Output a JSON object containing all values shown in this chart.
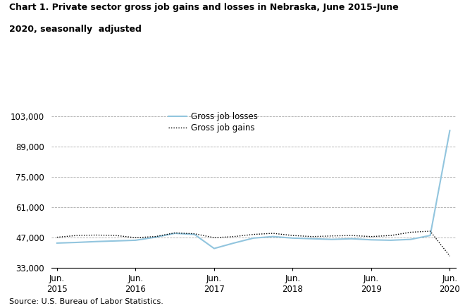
{
  "title_line1": "Chart 1. Private sector gross job gains and losses in Nebraska, June 2015–June",
  "title_line2": "2020, seasonally  adjusted",
  "source": "Source: U.S. Bureau of Labor Statistics.",
  "losses_label": "Gross job losses",
  "gains_label": "Gross job gains",
  "losses_color": "#92C5DE",
  "gains_color": "#000000",
  "ylim": [
    33000,
    107000
  ],
  "yticks": [
    33000,
    47000,
    61000,
    75000,
    89000,
    103000
  ],
  "ytick_labels": [
    "33,000",
    "47,000",
    "61,000",
    "75,000",
    "89,000",
    "103,000"
  ],
  "x_tick_labels": [
    "Jun.\n2015",
    "Jun.\n2016",
    "Jun.\n2017",
    "Jun.\n2018",
    "Jun.\n2019",
    "Jun.\n2020"
  ],
  "x_tick_positions": [
    0,
    4,
    8,
    12,
    16,
    20
  ],
  "losses_data": [
    44500,
    44800,
    45200,
    45500,
    45800,
    47200,
    49000,
    48500,
    42000,
    44500,
    46800,
    47500,
    46800,
    46500,
    46200,
    46500,
    46000,
    45800,
    46200,
    48000,
    96500
  ],
  "gains_data": [
    47200,
    48000,
    48200,
    48000,
    47000,
    47500,
    49200,
    48800,
    47000,
    47500,
    48500,
    49000,
    48000,
    47500,
    47800,
    48000,
    47500,
    48000,
    49500,
    50000,
    38500
  ]
}
